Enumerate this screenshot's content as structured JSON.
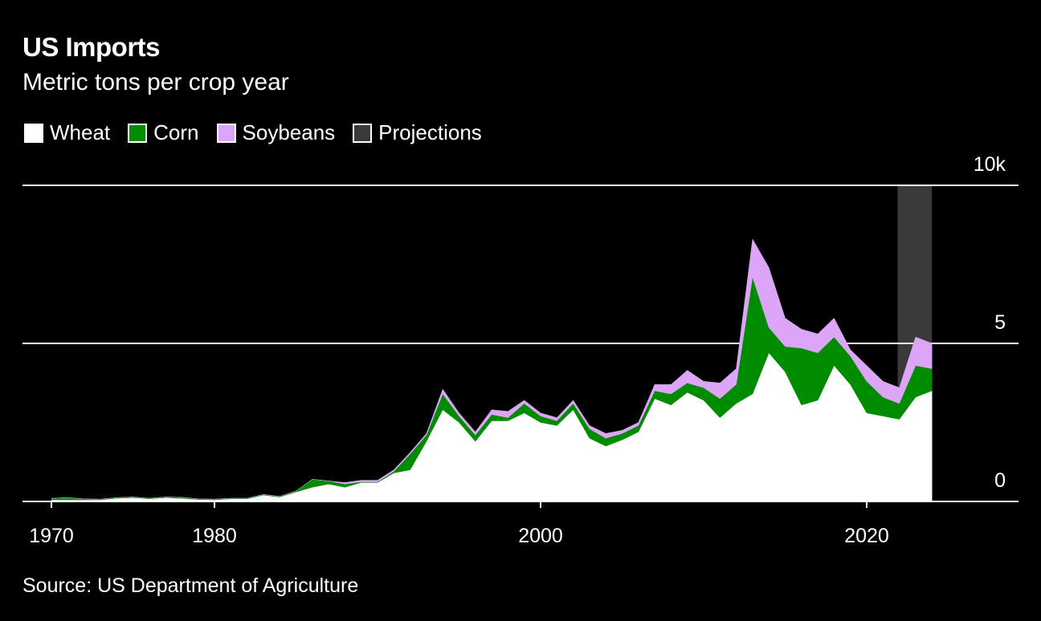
{
  "header": {
    "title": "US Imports",
    "subtitle": "Metric tons per crop year"
  },
  "source": "Source: US Department of Agriculture",
  "colors": {
    "background": "#000000",
    "wheat": "#ffffff",
    "corn": "#008c00",
    "soybeans": "#dda5f5",
    "projections": "#3a3a3a",
    "grid": "#ffffff"
  },
  "chart_data": {
    "type": "area",
    "stacked": true,
    "title": "US Imports",
    "subtitle": "Metric tons per crop year",
    "xlabel": "",
    "ylabel": "",
    "x": [
      1970,
      1971,
      1972,
      1973,
      1974,
      1975,
      1976,
      1977,
      1978,
      1979,
      1980,
      1981,
      1982,
      1983,
      1984,
      1985,
      1986,
      1987,
      1988,
      1989,
      1990,
      1991,
      1992,
      1993,
      1994,
      1995,
      1996,
      1997,
      1998,
      1999,
      2000,
      2001,
      2002,
      2003,
      2004,
      2005,
      2006,
      2007,
      2008,
      2009,
      2010,
      2011,
      2012,
      2013,
      2014,
      2015,
      2016,
      2017,
      2018,
      2019,
      2020,
      2021,
      2022,
      2023,
      2024
    ],
    "series": [
      {
        "name": "Wheat",
        "color": "#ffffff",
        "values": [
          0.05,
          0.05,
          0.05,
          0.05,
          0.1,
          0.12,
          0.08,
          0.12,
          0.1,
          0.06,
          0.05,
          0.08,
          0.08,
          0.2,
          0.14,
          0.3,
          0.45,
          0.55,
          0.45,
          0.6,
          0.6,
          0.9,
          1.0,
          1.9,
          2.9,
          2.5,
          1.9,
          2.55,
          2.55,
          2.8,
          2.5,
          2.4,
          2.9,
          2.0,
          1.75,
          1.95,
          2.2,
          3.25,
          3.05,
          3.45,
          3.2,
          2.65,
          3.1,
          3.4,
          4.7,
          4.1,
          3.05,
          3.2,
          4.3,
          3.7,
          2.8,
          2.7,
          2.6,
          3.3,
          3.5
        ]
      },
      {
        "name": "Corn",
        "color": "#008c00",
        "values": [
          0.05,
          0.07,
          0.03,
          0.02,
          0.02,
          0.02,
          0.02,
          0.02,
          0.03,
          0.02,
          0.02,
          0.02,
          0.02,
          0.02,
          0.02,
          0.03,
          0.25,
          0.1,
          0.1,
          0.02,
          0.02,
          0.05,
          0.5,
          0.2,
          0.5,
          0.2,
          0.2,
          0.2,
          0.1,
          0.3,
          0.2,
          0.15,
          0.2,
          0.3,
          0.25,
          0.2,
          0.2,
          0.25,
          0.35,
          0.3,
          0.4,
          0.6,
          0.6,
          3.7,
          0.8,
          0.8,
          1.8,
          1.5,
          0.9,
          0.9,
          1.0,
          0.6,
          0.5,
          1.0,
          0.7
        ]
      },
      {
        "name": "Soybeans",
        "color": "#dda5f5",
        "values": [
          0,
          0,
          0,
          0,
          0,
          0,
          0,
          0,
          0,
          0,
          0,
          0,
          0,
          0,
          0,
          0,
          0,
          0,
          0.05,
          0.05,
          0.05,
          0.05,
          0.05,
          0.05,
          0.15,
          0.1,
          0.1,
          0.15,
          0.2,
          0.1,
          0.1,
          0.1,
          0.1,
          0.1,
          0.15,
          0.1,
          0.1,
          0.2,
          0.3,
          0.4,
          0.2,
          0.5,
          0.5,
          1.2,
          1.9,
          0.9,
          0.6,
          0.6,
          0.6,
          0.2,
          0.5,
          0.5,
          0.5,
          0.9,
          0.8
        ]
      }
    ],
    "projections": {
      "label": "Projections",
      "x_range": [
        2022,
        2024
      ]
    },
    "xlim": [
      1970,
      2030
    ],
    "ylim": [
      0,
      10
    ],
    "y_ticks": [
      0,
      5,
      10
    ],
    "y_tick_labels": [
      "0",
      "5",
      "10k"
    ],
    "x_ticks": [
      1970,
      1980,
      2000,
      2020
    ],
    "x_tick_labels": [
      "1970",
      "1980",
      "2000",
      "2020"
    ],
    "legend": [
      "Wheat",
      "Corn",
      "Soybeans",
      "Projections"
    ],
    "legend_position": "top-left",
    "grid": true
  }
}
